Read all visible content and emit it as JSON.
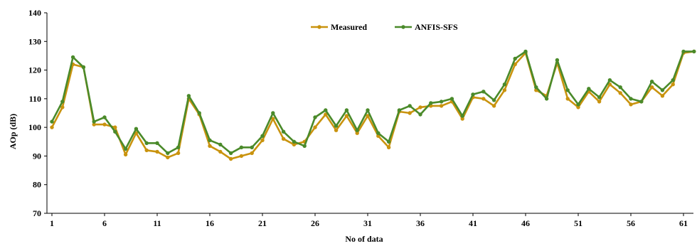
{
  "chart_data": {
    "type": "line",
    "xlabel": "No of data",
    "ylabel": "AOp (dB)",
    "ylim": [
      70,
      140
    ],
    "yticks": [
      70,
      80,
      90,
      100,
      110,
      120,
      130,
      140
    ],
    "xticks": [
      1,
      6,
      11,
      16,
      21,
      26,
      31,
      36,
      41,
      46,
      51,
      56,
      61
    ],
    "grid": false,
    "legend_position": "top-center",
    "x": [
      1,
      2,
      3,
      4,
      5,
      6,
      7,
      8,
      9,
      10,
      11,
      12,
      13,
      14,
      15,
      16,
      17,
      18,
      19,
      20,
      21,
      22,
      23,
      24,
      25,
      26,
      27,
      28,
      29,
      30,
      31,
      32,
      33,
      34,
      35,
      36,
      37,
      38,
      39,
      40,
      41,
      42,
      43,
      44,
      45,
      46,
      47,
      48,
      49,
      50,
      51,
      52,
      53,
      54,
      55,
      56,
      57,
      58,
      59,
      60,
      61,
      62
    ],
    "series": [
      {
        "name": "Measured",
        "color": "#c9930e",
        "values": [
          100,
          107,
          122,
          121,
          101,
          101,
          100,
          90.5,
          98,
          92,
          91.5,
          89.5,
          91,
          110,
          104.5,
          93.5,
          91.5,
          89,
          90,
          91,
          95.5,
          103,
          96,
          94,
          95,
          100,
          104.5,
          99,
          104,
          98,
          104,
          97,
          93,
          105.5,
          105,
          107,
          107.5,
          107.5,
          109,
          103,
          110.5,
          110,
          107.5,
          113,
          122,
          126,
          113,
          111,
          122.5,
          110,
          107,
          112.5,
          109,
          115,
          112,
          108,
          109,
          114,
          111,
          115,
          126,
          126.5
        ]
      },
      {
        "name": "ANFIS-SFS",
        "color": "#4a8a2a",
        "values": [
          102,
          109,
          124.5,
          121,
          102,
          103.5,
          98.5,
          92.5,
          99.5,
          94.5,
          94.5,
          91,
          93,
          111,
          105,
          95.5,
          94,
          91,
          93,
          93,
          97,
          105,
          98.5,
          95,
          93.5,
          103.5,
          106,
          100.5,
          106,
          99,
          106,
          98,
          95,
          106,
          107.5,
          104.5,
          108.5,
          109,
          110,
          104,
          111.5,
          112.5,
          109.5,
          115,
          124,
          126.5,
          114,
          110,
          123.5,
          113,
          108,
          113.5,
          110.5,
          116.5,
          114,
          110,
          109,
          116,
          113,
          116.5,
          126.5,
          126.5
        ]
      }
    ]
  }
}
